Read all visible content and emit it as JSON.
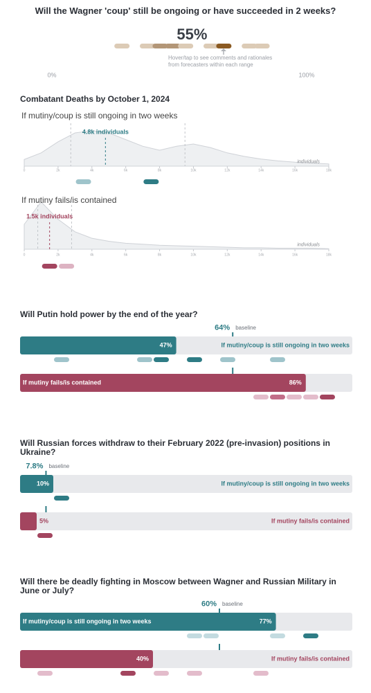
{
  "chart_data": [
    {
      "type": "strip",
      "title": "Will the Wagner 'coup' still be ongoing or have succeeded in 2 weeks?",
      "value": 55,
      "value_label": "55%",
      "note": "Hover/tap to see comments and rationales from forecasters within each range",
      "xlim": [
        0,
        100
      ],
      "xticks": [
        {
          "value": 0,
          "label": "0%"
        },
        {
          "value": 100,
          "label": "100%"
        }
      ],
      "forecasts": [
        27.5,
        37.5,
        42.5,
        47.5,
        52.5,
        62.5,
        67.5,
        77.5,
        82.5
      ],
      "forecast_colors": [
        "#dccbb6",
        "#dccbb6",
        "#b39677",
        "#b39677",
        "#dccbb6",
        "#dccbb6",
        "#8b5a22",
        "#dccbb6",
        "#dccbb6"
      ]
    },
    {
      "type": "area",
      "title": "Combatant Deaths by October 1, 2024",
      "subtitle": "If mutiny/coup is still ongoing in two weeks",
      "x": [
        0,
        1000,
        2000,
        3000,
        4000,
        5000,
        6000,
        7000,
        8000,
        9000,
        10000,
        11000,
        12000,
        13000,
        14000,
        15000,
        16000,
        17000,
        18000
      ],
      "values": [
        15,
        30,
        55,
        75,
        80,
        75,
        60,
        45,
        36,
        45,
        50,
        42,
        30,
        22,
        16,
        12,
        9,
        7,
        5
      ],
      "ylim": [
        0,
        100
      ],
      "median": 4800,
      "median_label": "4.8k individuals",
      "quartiles": [
        2750,
        9500
      ],
      "forecasts": [
        3500,
        7500
      ],
      "forecast_colors": [
        "#9fc4cb",
        "#2e7c85"
      ],
      "color": "#2e7c85",
      "xlim": [
        0,
        18000
      ],
      "xticks": [
        0,
        {
          "value": 2000,
          "label": "2k"
        },
        {
          "value": 4000,
          "label": "4k"
        },
        {
          "value": 6000,
          "label": "6k"
        },
        {
          "value": 8000,
          "label": "8k"
        },
        {
          "value": 10000,
          "label": "10k"
        },
        {
          "value": 12000,
          "label": "12k"
        },
        {
          "value": 14000,
          "label": "14k"
        },
        {
          "value": 16000,
          "label": "16k"
        },
        {
          "value": 18000,
          "label": "18k"
        }
      ],
      "xlabel": "individuals"
    },
    {
      "type": "area",
      "subtitle": "If mutiny fails/is contained",
      "x": [
        0,
        1000,
        2000,
        3000,
        4000,
        5000,
        6000,
        7000,
        8000,
        9000,
        10000,
        11000,
        12000,
        13000,
        14000,
        15000,
        16000,
        17000,
        18000
      ],
      "values": [
        50,
        95,
        60,
        35,
        22,
        16,
        12,
        10,
        8,
        7,
        6,
        5,
        4,
        3,
        3,
        2,
        2,
        2,
        1
      ],
      "ylim": [
        0,
        100
      ],
      "median": 1500,
      "median_label": "1.5k individuals",
      "quartiles": [
        800,
        2800
      ],
      "forecasts": [
        1500,
        2500
      ],
      "forecast_colors": [
        "#a3455f",
        "#ddb3c2"
      ],
      "color": "#a3455f",
      "xlim": [
        0,
        18000
      ],
      "xticks": [
        0,
        {
          "value": 2000,
          "label": "2k"
        },
        {
          "value": 4000,
          "label": "4k"
        },
        {
          "value": 6000,
          "label": "6k"
        },
        {
          "value": 8000,
          "label": "8k"
        },
        {
          "value": 10000,
          "label": "10k"
        },
        {
          "value": 12000,
          "label": "12k"
        },
        {
          "value": 14000,
          "label": "14k"
        },
        {
          "value": 16000,
          "label": "16k"
        },
        {
          "value": 18000,
          "label": "18k"
        }
      ],
      "xlabel": "individuals"
    },
    {
      "type": "bar",
      "title": "Will Putin hold power by the end of the year?",
      "baseline": 64,
      "baseline_label": "64%",
      "baseline_text": "baseline",
      "xlim": [
        0,
        100
      ],
      "series": [
        {
          "name": "If mutiny/coup is still ongoing in two weeks",
          "color": "#2e7c85",
          "values": [
            47
          ],
          "value_labels": [
            "47%"
          ],
          "forecasts": [
            12.5,
            37.5,
            42.5,
            52.5,
            62.5,
            77.5
          ],
          "forecast_colors": [
            "#9fc4cb",
            "#9fc4cb",
            "#2e7c85",
            "#2e7c85",
            "#9fc4cb",
            "#9fc4cb"
          ]
        },
        {
          "name": "If mutiny fails/is contained",
          "color": "#a3455f",
          "values": [
            86
          ],
          "value_labels": [
            "86%"
          ],
          "forecasts": [
            72.5,
            77.5,
            82.5,
            87.5,
            92.5
          ],
          "forecast_colors": [
            "#e3bccb",
            "#c26e89",
            "#e3bccb",
            "#e3bccb",
            "#a3455f"
          ]
        }
      ]
    },
    {
      "type": "bar",
      "title": "Will Russian forces withdraw to their February 2022 (pre-invasion) positions in Ukraine?",
      "baseline": 7.8,
      "baseline_label": "7.8%",
      "baseline_text": "baseline",
      "xlim": [
        0,
        100
      ],
      "series": [
        {
          "name": "If mutiny/coup is still ongoing in two weeks",
          "color": "#2e7c85",
          "values": [
            10
          ],
          "value_labels": [
            "10%"
          ],
          "forecasts": [
            12.5
          ],
          "forecast_colors": [
            "#2e7c85"
          ]
        },
        {
          "name": "If mutiny fails/is contained",
          "color": "#a3455f",
          "values": [
            5
          ],
          "value_labels": [
            "5%"
          ],
          "forecasts": [
            7.5
          ],
          "forecast_colors": [
            "#a3455f"
          ]
        }
      ]
    },
    {
      "type": "bar",
      "title": "Will there be deadly fighting in Moscow between Wagner and Russian Military in June or July?",
      "baseline": 60,
      "baseline_label": "60%",
      "baseline_text": "baseline",
      "xlim": [
        0,
        100
      ],
      "series": [
        {
          "name": "If mutiny/coup is still ongoing in two weeks",
          "color": "#2e7c85",
          "values": [
            77
          ],
          "value_labels": [
            "77%"
          ],
          "forecasts": [
            52.5,
            57.5,
            77.5,
            87.5
          ],
          "forecast_colors": [
            "#c3dbe0",
            "#c3dbe0",
            "#c3dbe0",
            "#2e7c85"
          ]
        },
        {
          "name": "If mutiny fails/is contained",
          "color": "#a3455f",
          "values": [
            40
          ],
          "value_labels": [
            "40%"
          ],
          "forecasts": [
            7.5,
            32.5,
            42.5,
            52.5,
            72.5
          ],
          "forecast_colors": [
            "#e3bccb",
            "#a3455f",
            "#e3bccb",
            "#e3bccb",
            "#e3bccb"
          ]
        }
      ]
    }
  ]
}
